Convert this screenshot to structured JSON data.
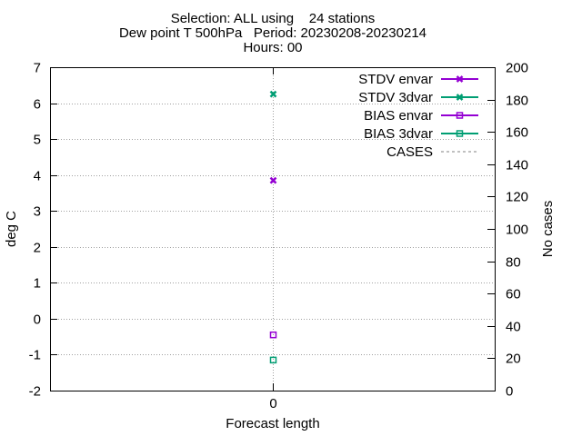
{
  "titles": {
    "line1": "Selection: ALL using    24 stations",
    "line2": "Dew point T 500hPa   Period: 20230208-20230214",
    "line3": "Hours: 00"
  },
  "chart_data": {
    "type": "scatter",
    "title": "Selection: ALL using    24 stations\nDew point T 500hPa   Period: 20230208-20230214\nHours: 00",
    "xlabel": "Forecast length",
    "ylabel": "deg C",
    "y2label": "No cases",
    "x_ticks": [
      "0"
    ],
    "ylim": [
      -2,
      7
    ],
    "y_ticks": [
      -2,
      -1,
      0,
      1,
      2,
      3,
      4,
      5,
      6,
      7
    ],
    "y2lim": [
      0,
      200
    ],
    "y2_ticks": [
      0,
      20,
      40,
      60,
      80,
      100,
      120,
      140,
      160,
      180,
      200
    ],
    "grid": true,
    "legend_position": "top-right",
    "series": [
      {
        "name": "STDV envar",
        "x": [
          0
        ],
        "y": [
          3.85
        ],
        "color": "#9400d3",
        "marker": "x-filled",
        "axis": "left"
      },
      {
        "name": "STDV 3dvar",
        "x": [
          0
        ],
        "y": [
          6.25
        ],
        "color": "#009e73",
        "marker": "x-filled",
        "axis": "left"
      },
      {
        "name": "BIAS envar",
        "x": [
          0
        ],
        "y": [
          -0.45
        ],
        "color": "#9400d3",
        "marker": "square-open",
        "axis": "left"
      },
      {
        "name": "BIAS 3dvar",
        "x": [
          0
        ],
        "y": [
          -1.15
        ],
        "color": "#009e73",
        "marker": "square-open",
        "axis": "left"
      },
      {
        "name": "CASES",
        "x": [],
        "y": [],
        "color": "#808080",
        "marker": "dashed-line",
        "axis": "right"
      }
    ]
  }
}
